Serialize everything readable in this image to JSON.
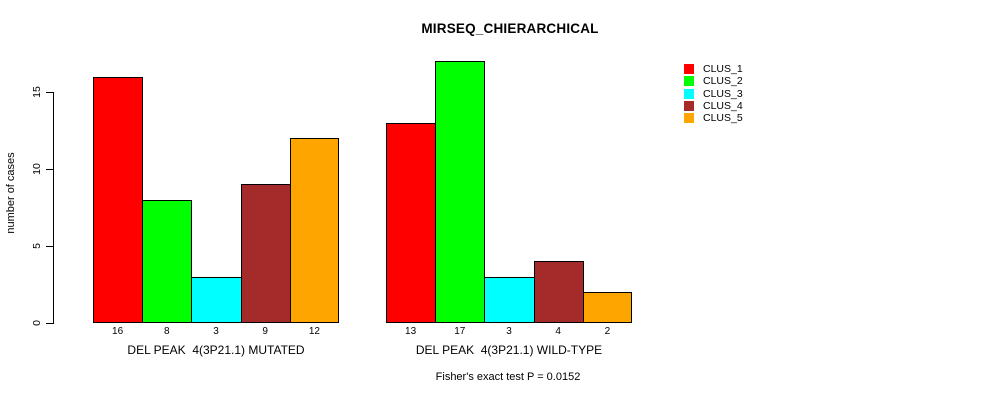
{
  "title": "MIRSEQ_CHIERARCHICAL",
  "footer": "Fisher's exact test P = 0.0152",
  "chart_data": {
    "type": "bar",
    "title": "MIRSEQ_CHIERARCHICAL",
    "xlabel": "",
    "ylabel": "number of cases",
    "ylim": [
      0,
      17.5
    ],
    "y_ticks": [
      0,
      5,
      10,
      15
    ],
    "grid": false,
    "legend_position": "right-outside",
    "categories": [
      "CLUS_1",
      "CLUS_2",
      "CLUS_3",
      "CLUS_4",
      "CLUS_5"
    ],
    "colors": [
      "#FF0000",
      "#00FF00",
      "#00FFFF",
      "#A52A2A",
      "#FFA500"
    ],
    "groups": [
      {
        "xlabel": "DEL PEAK  4(3P21.1) MUTATED",
        "values": [
          16,
          8,
          3,
          9,
          12
        ]
      },
      {
        "xlabel": "DEL PEAK  4(3P21.1) WILD-TYPE",
        "values": [
          13,
          17,
          3,
          4,
          2
        ]
      }
    ],
    "bar_value_labels": true,
    "annotation": "Fisher's exact test P = 0.0152"
  }
}
